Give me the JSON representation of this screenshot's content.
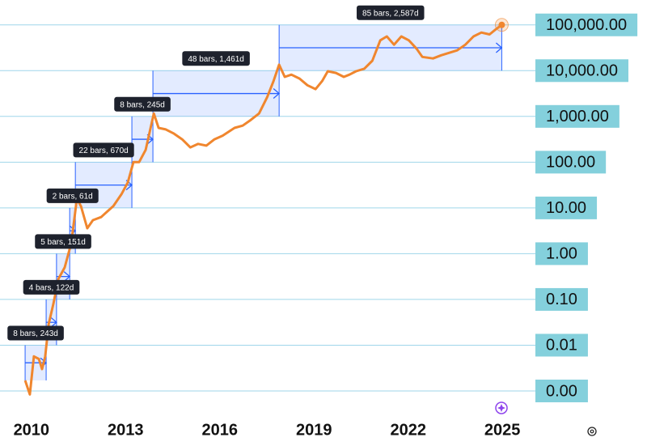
{
  "chart_data": {
    "type": "line",
    "log_y": true,
    "grid": true,
    "color": "#f0862e",
    "measure_color": "#2962ff",
    "xlim": [
      2009,
      2026
    ],
    "ylim": [
      0.0005,
      350000
    ],
    "xticks": [
      2010,
      2013,
      2016,
      2019,
      2022,
      2025
    ],
    "yticks": [
      {
        "value": 100000,
        "label": "100,000.00"
      },
      {
        "value": 10000,
        "label": "10,000.00"
      },
      {
        "value": 1000,
        "label": "1,000.00"
      },
      {
        "value": 100,
        "label": "100.00"
      },
      {
        "value": 10,
        "label": "10.00"
      },
      {
        "value": 1,
        "label": "1.00"
      },
      {
        "value": 0.1,
        "label": "0.10"
      },
      {
        "value": 0.01,
        "label": "0.01"
      },
      {
        "value": 0.001,
        "label": "0.00"
      }
    ],
    "x": [
      2009.8,
      2009.95,
      2010.08,
      2010.24,
      2010.34,
      2010.44,
      2010.55,
      2010.7,
      2010.86,
      2011.06,
      2011.27,
      2011.45,
      2011.58,
      2011.78,
      2011.96,
      2012.22,
      2012.61,
      2012.87,
      2013.07,
      2013.25,
      2013.43,
      2013.64,
      2013.9,
      2014.05,
      2014.28,
      2014.54,
      2014.8,
      2015.06,
      2015.31,
      2015.57,
      2015.83,
      2016.09,
      2016.47,
      2016.73,
      2016.99,
      2017.25,
      2017.51,
      2017.71,
      2017.89,
      2018.07,
      2018.28,
      2018.54,
      2018.79,
      2019.05,
      2019.26,
      2019.44,
      2019.7,
      2019.95,
      2020.13,
      2020.34,
      2020.6,
      2020.86,
      2021.11,
      2021.32,
      2021.55,
      2021.78,
      2022.02,
      2022.27,
      2022.45,
      2022.79,
      2023.05,
      2023.3,
      2023.56,
      2023.82,
      2024.08,
      2024.33,
      2024.59,
      2024.8,
      2024.98
    ],
    "values": [
      0.0017,
      0.00084,
      0.0057,
      0.005,
      0.003,
      0.0057,
      0.029,
      0.08,
      0.28,
      0.5,
      1.7,
      16,
      10.8,
      3.6,
      5.4,
      6.3,
      11,
      20,
      36,
      100,
      100,
      185,
      1160,
      560,
      520,
      420,
      316,
      210,
      250,
      230,
      316,
      380,
      560,
      630,
      840,
      1160,
      2650,
      5900,
      13500,
      7300,
      8200,
      6700,
      4800,
      3950,
      5900,
      9700,
      8900,
      7300,
      8200,
      9700,
      11000,
      16500,
      46000,
      56000,
      37000,
      56000,
      46000,
      30000,
      20000,
      18500,
      21700,
      24500,
      27800,
      37000,
      56000,
      68000,
      62000,
      81000,
      100000
    ],
    "measures": [
      {
        "label": "8 bars, 243d",
        "x": [
          2009.8,
          2010.47
        ],
        "y": [
          0.0017,
          0.01
        ]
      },
      {
        "label": "4 bars, 122d",
        "x": [
          2010.47,
          2010.8
        ],
        "y": [
          0.01,
          0.1
        ]
      },
      {
        "label": "5 bars, 151d",
        "x": [
          2010.8,
          2011.22
        ],
        "y": [
          0.1,
          1
        ]
      },
      {
        "label": "2 bars, 61d",
        "x": [
          2011.22,
          2011.4
        ],
        "y": [
          1,
          10
        ]
      },
      {
        "label": "22 bars, 670d",
        "x": [
          2011.4,
          2013.2
        ],
        "y": [
          10,
          100
        ]
      },
      {
        "label": "8 bars, 245d",
        "x": [
          2013.2,
          2013.87
        ],
        "y": [
          100,
          1000
        ]
      },
      {
        "label": "48 bars, 1,461d",
        "x": [
          2013.87,
          2017.89
        ],
        "y": [
          1000,
          10000
        ]
      },
      {
        "label": "85 bars, 2,587d",
        "x": [
          2017.89,
          2024.98
        ],
        "y": [
          10000,
          100000
        ]
      }
    ]
  }
}
